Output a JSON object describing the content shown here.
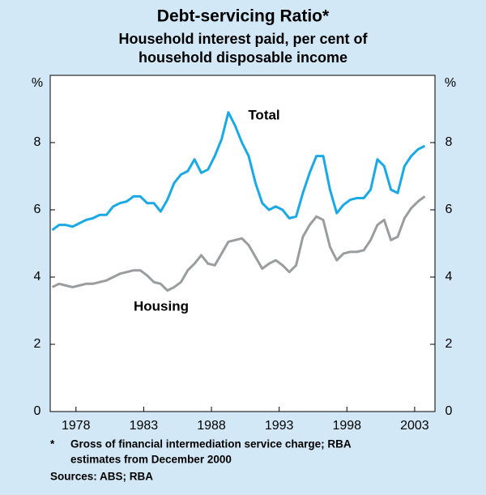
{
  "chart_data": {
    "type": "line",
    "title": "Debt-servicing Ratio*",
    "subtitle": [
      "Household interest paid, per cent of",
      "household disposable income"
    ],
    "ylabel": "%",
    "y2label": "%",
    "x": [
      1976.25,
      1976.75,
      1977.25,
      1977.75,
      1978.25,
      1978.75,
      1979.25,
      1979.75,
      1980.25,
      1980.75,
      1981.25,
      1981.75,
      1982.25,
      1982.75,
      1983.25,
      1983.75,
      1984.25,
      1984.75,
      1985.25,
      1985.75,
      1986.25,
      1986.75,
      1987.25,
      1987.75,
      1988.25,
      1988.75,
      1989.25,
      1989.75,
      1990.25,
      1990.75,
      1991.25,
      1991.75,
      1992.25,
      1992.75,
      1993.25,
      1993.75,
      1994.25,
      1994.75,
      1995.25,
      1995.75,
      1996.25,
      1996.75,
      1997.25,
      1997.75,
      1998.25,
      1998.75,
      1999.25,
      1999.75,
      2000.25,
      2000.75,
      2001.25,
      2001.75,
      2002.25,
      2002.75,
      2003.25,
      2003.75
    ],
    "series": [
      {
        "name": "Total",
        "color": "#1ba9e6",
        "values": [
          5.4,
          5.55,
          5.55,
          5.5,
          5.6,
          5.7,
          5.75,
          5.85,
          5.85,
          6.1,
          6.2,
          6.25,
          6.4,
          6.4,
          6.2,
          6.2,
          5.95,
          6.3,
          6.8,
          7.05,
          7.15,
          7.5,
          7.1,
          7.2,
          7.6,
          8.1,
          8.9,
          8.5,
          8.0,
          7.6,
          6.8,
          6.2,
          6.0,
          6.1,
          6.0,
          5.75,
          5.8,
          6.5,
          7.1,
          7.6,
          7.6,
          6.6,
          5.9,
          6.15,
          6.3,
          6.35,
          6.35,
          6.6,
          7.5,
          7.3,
          6.6,
          6.5,
          7.3,
          7.6,
          7.8,
          7.9
        ]
      },
      {
        "name": "Housing",
        "color": "#9b9c9e",
        "values": [
          3.7,
          3.8,
          3.75,
          3.7,
          3.75,
          3.8,
          3.8,
          3.85,
          3.9,
          4.0,
          4.1,
          4.15,
          4.2,
          4.2,
          4.05,
          3.85,
          3.8,
          3.6,
          3.7,
          3.85,
          4.2,
          4.4,
          4.65,
          4.4,
          4.35,
          4.7,
          5.05,
          5.1,
          5.15,
          4.95,
          4.6,
          4.25,
          4.4,
          4.5,
          4.35,
          4.15,
          4.35,
          5.2,
          5.55,
          5.8,
          5.7,
          4.9,
          4.5,
          4.7,
          4.75,
          4.75,
          4.8,
          5.1,
          5.55,
          5.7,
          5.1,
          5.2,
          5.75,
          6.05,
          6.25,
          6.4
        ]
      }
    ],
    "xlim": [
      1976.1,
      2004.5
    ],
    "xticks": [
      1978,
      1983,
      1988,
      1993,
      1998,
      2003
    ],
    "ylim": [
      0,
      10
    ],
    "yticks": [
      0,
      2,
      4,
      6,
      8
    ],
    "y2lim": [
      0,
      10
    ],
    "y2ticks": [
      0,
      2,
      4,
      6,
      8
    ],
    "footnote": [
      "*",
      "Gross of financial intermediation service charge; RBA",
      "estimates from December 2000"
    ],
    "sources": "Sources: ABS; RBA"
  }
}
